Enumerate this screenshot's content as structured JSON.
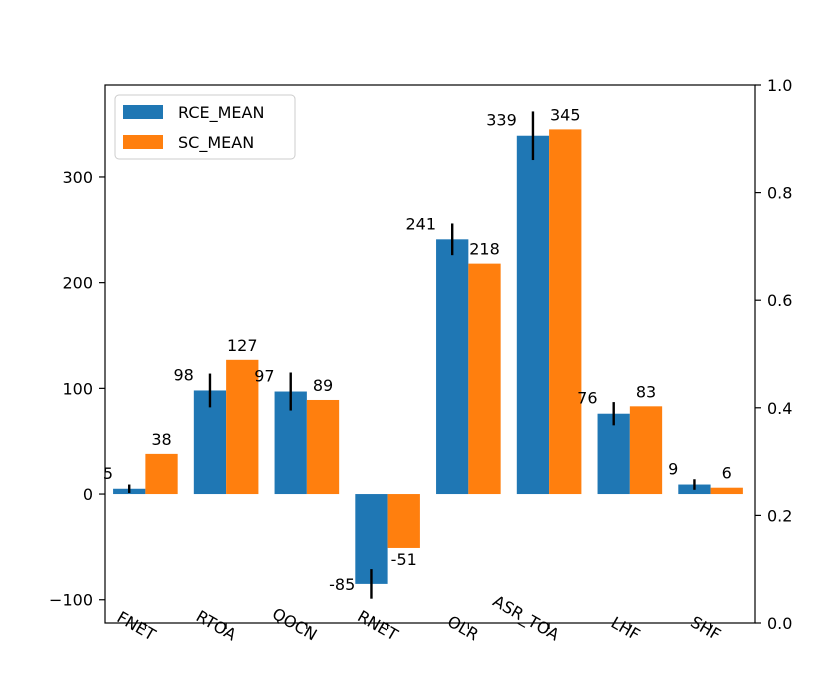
{
  "chart_data": {
    "type": "bar",
    "categories": [
      "FNET",
      "RTOA",
      "QOCN",
      "RNET",
      "OLR",
      "ASR_TOA",
      "LHF",
      "SHF"
    ],
    "series": [
      {
        "name": "RCE_MEAN",
        "values": [
          5,
          98,
          97,
          -85,
          241,
          339,
          76,
          9
        ],
        "labels": [
          "5",
          "98",
          "97",
          "-85",
          "241",
          "339",
          "76",
          "9"
        ],
        "error": [
          4,
          16,
          18,
          14,
          15,
          23,
          11,
          5
        ],
        "color": "#1f77b4"
      },
      {
        "name": "SC_MEAN",
        "values": [
          38,
          127,
          89,
          -51,
          218,
          345,
          83,
          6
        ],
        "labels": [
          "38",
          "127",
          "89",
          "-51",
          "218",
          "345",
          "83",
          "6"
        ],
        "color": "#ff7f0e"
      }
    ],
    "ylim": [
      -122,
      387
    ],
    "yticks": [
      -100,
      0,
      100,
      200,
      300
    ],
    "ytick_labels": [
      "−100",
      "0",
      "100",
      "200",
      "300"
    ],
    "y2lim": [
      0,
      1
    ],
    "y2ticks": [
      0,
      0.2,
      0.4,
      0.6,
      0.8,
      1.0
    ],
    "y2tick_labels": [
      "0.0",
      "0.2",
      "0.4",
      "0.6",
      "0.8",
      "1.0"
    ],
    "grid": false,
    "legend_position": "top-left"
  }
}
